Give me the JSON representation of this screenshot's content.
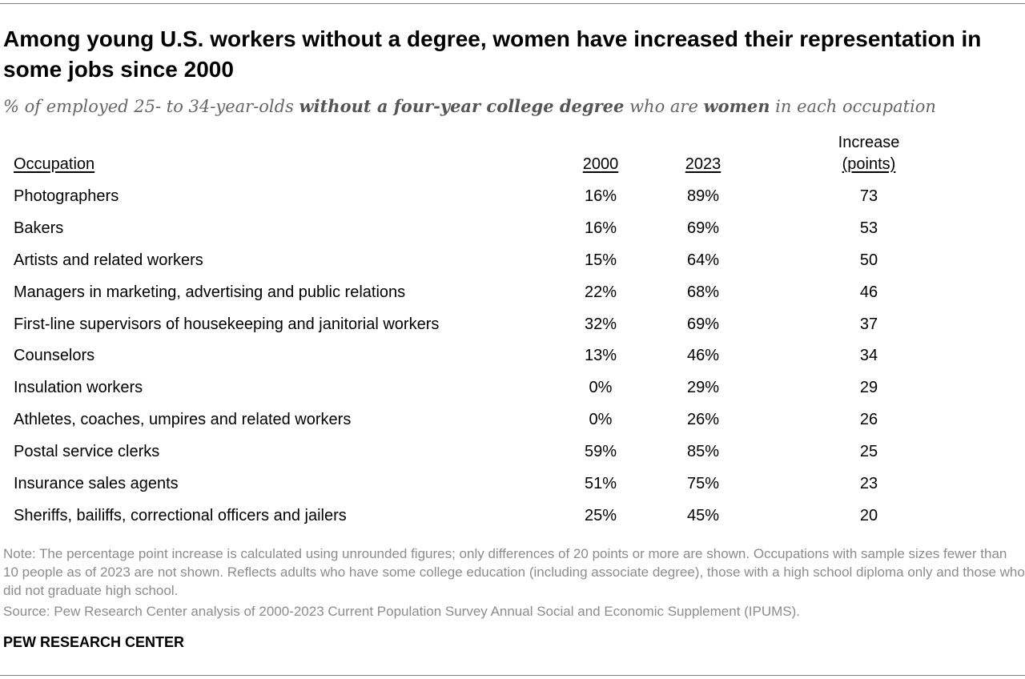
{
  "chart_data": {
    "type": "table",
    "title": "Among young U.S. workers without a degree, women have increased their representation in some jobs since 2000",
    "subtitle": {
      "part1": "% of employed 25- to 34-year-olds ",
      "bold1": "without a four-year college degree",
      "part2": " who are ",
      "bold2": "women",
      "part3": " in each occupation"
    },
    "columns": {
      "occupation": "Occupation",
      "year_2000": "2000",
      "year_2023": "2023",
      "increase_line1": "Increase",
      "increase_line2": "(points)"
    },
    "rows": [
      {
        "occupation": "Photographers",
        "y2000": "16%",
        "y2023": "89%",
        "increase": "73"
      },
      {
        "occupation": "Bakers",
        "y2000": "16%",
        "y2023": "69%",
        "increase": "53"
      },
      {
        "occupation": "Artists and related workers",
        "y2000": "15%",
        "y2023": "64%",
        "increase": "50"
      },
      {
        "occupation": "Managers in marketing, advertising and public relations",
        "y2000": "22%",
        "y2023": "68%",
        "increase": "46"
      },
      {
        "occupation": "First-line supervisors of housekeeping and janitorial workers",
        "y2000": "32%",
        "y2023": "69%",
        "increase": "37"
      },
      {
        "occupation": "Counselors",
        "y2000": "13%",
        "y2023": "46%",
        "increase": "34"
      },
      {
        "occupation": "Insulation workers",
        "y2000": "0%",
        "y2023": "29%",
        "increase": "29"
      },
      {
        "occupation": "Athletes, coaches, umpires and related workers",
        "y2000": "0%",
        "y2023": "26%",
        "increase": "26"
      },
      {
        "occupation": "Postal service clerks",
        "y2000": "59%",
        "y2023": "85%",
        "increase": "25"
      },
      {
        "occupation": "Insurance sales agents",
        "y2000": "51%",
        "y2023": "75%",
        "increase": "23"
      },
      {
        "occupation": "Sheriffs, bailiffs, correctional officers and jailers",
        "y2000": "25%",
        "y2023": "45%",
        "increase": "20"
      }
    ],
    "note": "Note: The percentage point increase is calculated using unrounded figures; only differences of 20 points or more are shown. Occupations with sample sizes fewer than 10 people as of 2023 are not shown. Reflects adults who have some college education (including associate degree), those with a high school diploma only and those who did not graduate high school.",
    "source": "Source: Pew Research Center analysis of 2000-2023 Current Population Survey Annual Social and Economic Supplement (IPUMS).",
    "brand": "PEW RESEARCH CENTER"
  }
}
